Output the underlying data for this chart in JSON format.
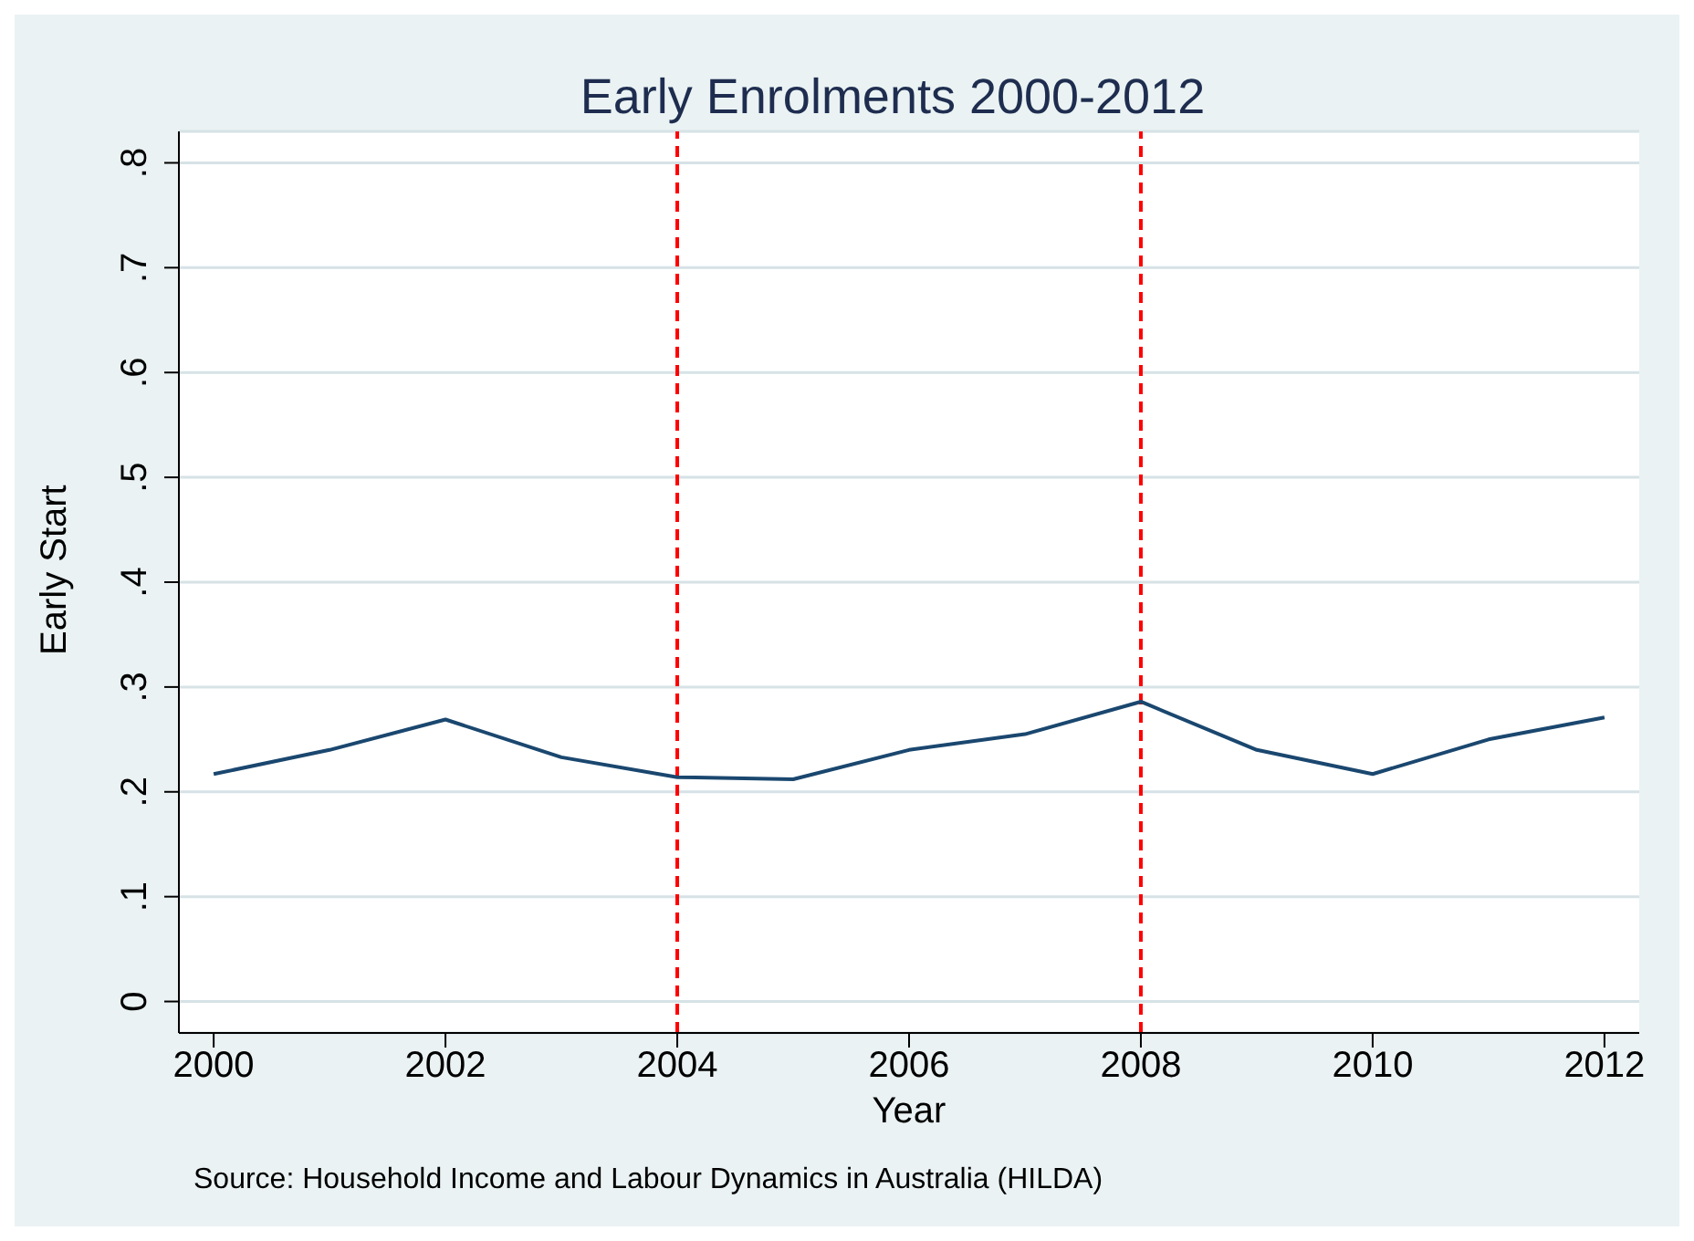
{
  "chart_data": {
    "type": "line",
    "title": "Early Enrolments 2000-2012",
    "xlabel": "Year",
    "ylabel": "Early Start",
    "x": [
      2000,
      2001,
      2002,
      2003,
      2004,
      2005,
      2006,
      2007,
      2008,
      2009,
      2010,
      2011,
      2012
    ],
    "series": [
      {
        "color": "#1a476f",
        "values": [
          0.217,
          0.24,
          0.269,
          0.233,
          0.214,
          0.212,
          0.24,
          0.255,
          0.286,
          0.24,
          0.217,
          0.25,
          0.271
        ]
      }
    ],
    "xlim": [
      1999.7,
      2012.3
    ],
    "xticks": [
      2000,
      2002,
      2004,
      2006,
      2008,
      2010,
      2012
    ],
    "ylim": [
      -0.03,
      0.83
    ],
    "yticks": [
      {
        "value": 0,
        "label": "0"
      },
      {
        "value": 0.1,
        "label": ".1"
      },
      {
        "value": 0.2,
        "label": ".2"
      },
      {
        "value": 0.3,
        "label": ".3"
      },
      {
        "value": 0.4,
        "label": ".4"
      },
      {
        "value": 0.5,
        "label": ".5"
      },
      {
        "value": 0.6,
        "label": ".6"
      },
      {
        "value": 0.7,
        "label": ".7"
      },
      {
        "value": 0.8,
        "label": ".8"
      }
    ],
    "grid": "y",
    "marker": "none",
    "line_style": "solid",
    "ref_lines": [
      {
        "axis": "x",
        "value": 2004,
        "color": "#ff0000",
        "line_style": "dashed"
      },
      {
        "axis": "x",
        "value": 2008,
        "color": "#ff0000",
        "line_style": "dashed"
      }
    ],
    "annotations": [
      "Source: Household Income and Labour Dynamics in Australia (HILDA)"
    ]
  }
}
